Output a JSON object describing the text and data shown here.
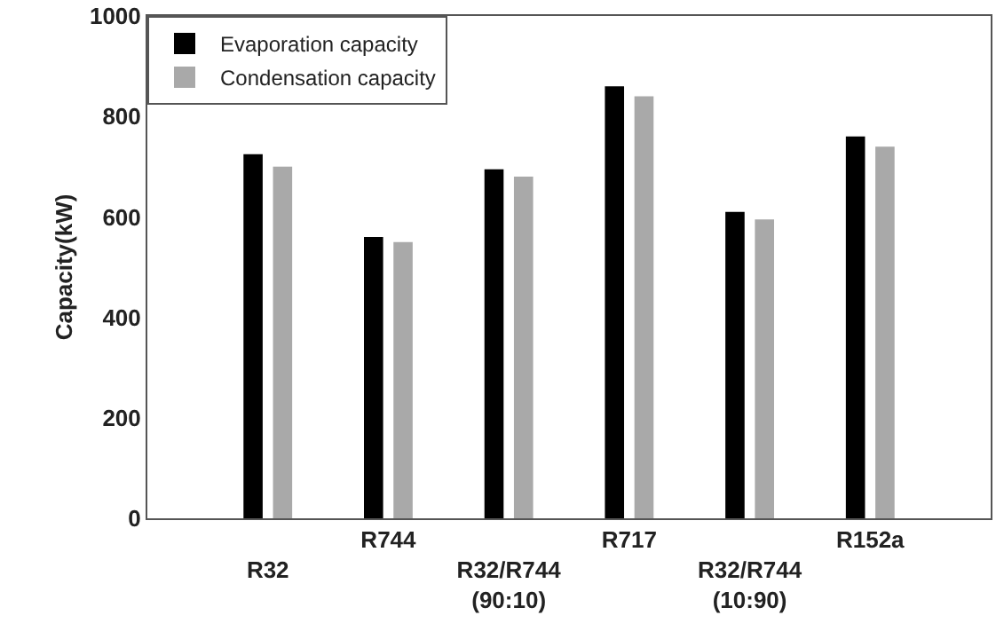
{
  "chart_data": {
    "type": "bar",
    "ylabel": "Capacity(kW)",
    "categories": [
      "R32",
      "R744",
      "R32/R744 (90:10)",
      "R717",
      "R32/R744 (10:90)",
      "R152a"
    ],
    "series": [
      {
        "name": "Evaporation capacity",
        "color": "#000000",
        "values": [
          725,
          560,
          695,
          860,
          610,
          760
        ]
      },
      {
        "name": "Condensation capacity",
        "color": "#a9a9a9",
        "values": [
          700,
          550,
          680,
          840,
          595,
          740
        ]
      }
    ],
    "ylim": [
      0,
      1000
    ],
    "yticks": [
      0,
      200,
      400,
      600,
      800,
      1000
    ],
    "grid": false,
    "legend": "top left"
  }
}
